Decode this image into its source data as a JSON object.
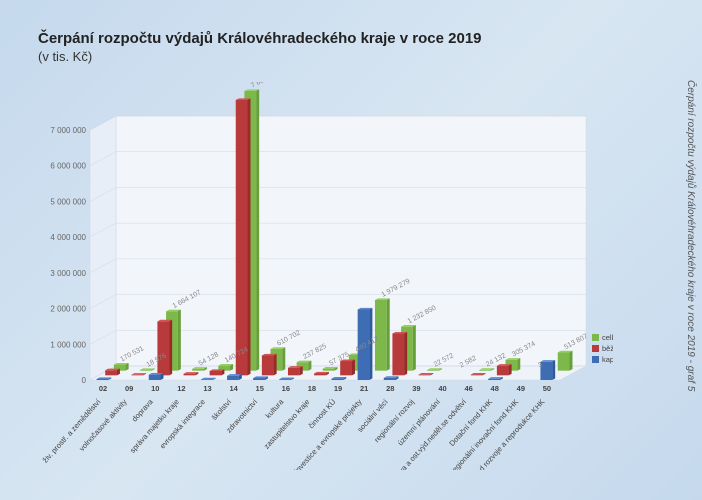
{
  "title": "Čerpání rozpočtu výdajů Královéhradeckého kraje v roce 2019",
  "subtitle": "(v tis. Kč)",
  "side_caption": "Čerpání rozpočtu výdajů Královéhradeckého kraje v roce 2019 - graf 5",
  "chart": {
    "type": "3d-grouped-bar",
    "y_axis": {
      "min": 0,
      "max": 7000000,
      "step": 1000000,
      "ticks": [
        0,
        1000000,
        2000000,
        3000000,
        4000000,
        5000000,
        6000000,
        7000000
      ],
      "fontsize": 8
    },
    "value_label_fontsize": 7,
    "series": [
      {
        "key": "kapital",
        "label": "kapitál. výdaje",
        "color": "#3f6db3",
        "color_top": "#5a88ce",
        "color_side": "#2d5a9a"
      },
      {
        "key": "bezne",
        "label": "běžné v.",
        "color": "#b93a3a",
        "color_top": "#d05555",
        "color_side": "#9a2a2a"
      },
      {
        "key": "celkem",
        "label": "celkem",
        "color": "#7db84a",
        "color_top": "#94cf61",
        "color_side": "#679f38"
      }
    ],
    "categories": [
      {
        "code": "02",
        "label": "živ. prostř. a zemědělství",
        "kapital": 28000,
        "bezne": 142000,
        "celkem": 170531,
        "show": 170531
      },
      {
        "code": "09",
        "label": "volnočasové aktivity",
        "kapital": 2000,
        "bezne": 16000,
        "celkem": 18576,
        "show": 18576
      },
      {
        "code": "10",
        "label": "doprava",
        "kapital": 150000,
        "bezne": 1510000,
        "celkem": 1664107,
        "show": 1664107
      },
      {
        "code": "12",
        "label": "správa majetku kraje",
        "kapital": 8000,
        "bezne": 46000,
        "celkem": 54128,
        "show": 54128
      },
      {
        "code": "13",
        "label": "evropská integrace",
        "kapital": 18000,
        "bezne": 122000,
        "celkem": 140724,
        "show": 140724
      },
      {
        "code": "14",
        "label": "školství",
        "kapital": 120000,
        "bezne": 7710000,
        "celkem": 7833058,
        "show": 7833058
      },
      {
        "code": "15",
        "label": "zdravotnictví",
        "kapital": 55000,
        "bezne": 555000,
        "celkem": 610702,
        "show": 610702
      },
      {
        "code": "16",
        "label": "kultura",
        "kapital": 25000,
        "bezne": 212000,
        "celkem": 237825,
        "show": 237825
      },
      {
        "code": "18",
        "label": "zastupitelstvo kraje",
        "kapital": 5000,
        "bezne": 52000,
        "celkem": 57375,
        "show": 57375
      },
      {
        "code": "19",
        "label": "činnost KÚ",
        "kapital": 40000,
        "bezne": 400000,
        "celkem": 440417,
        "show": 440417
      },
      {
        "code": "21",
        "label": "investice a evropské projekty",
        "kapital": 1975000,
        "bezne": 5000,
        "celkem": 1979279,
        "show": 1979279
      },
      {
        "code": "28",
        "label": "sociální věcí",
        "kapital": 60000,
        "bezne": 1170000,
        "celkem": 1232850,
        "show": 1232850
      },
      {
        "code": "39",
        "label": "regionální rozvoj",
        "kapital": 3000,
        "bezne": 19000,
        "celkem": 22572,
        "show": 22572
      },
      {
        "code": "40",
        "label": "územní plánování",
        "kapital": 500,
        "bezne": 2000,
        "celkem": 2582,
        "show": 2582
      },
      {
        "code": "46",
        "label": "rezerva a ost.výd.neděl.se odvětví",
        "kapital": 3000,
        "bezne": 21000,
        "celkem": 24132,
        "show": 24132
      },
      {
        "code": "48",
        "label": "Dotační fond KHK",
        "kapital": 35000,
        "bezne": 270000,
        "celkem": 305374,
        "show": 305374
      },
      {
        "code": "49",
        "label": "Regionální inovační fond KHK",
        "kapital": 1,
        "bezne": 2,
        "celkem": 3,
        "show": 3
      },
      {
        "code": "50",
        "label": "Fond rozvoje a reprodukce KHK",
        "kapital": 510000,
        "bezne": 3000,
        "celkem": 513807,
        "show": 513807
      }
    ]
  }
}
